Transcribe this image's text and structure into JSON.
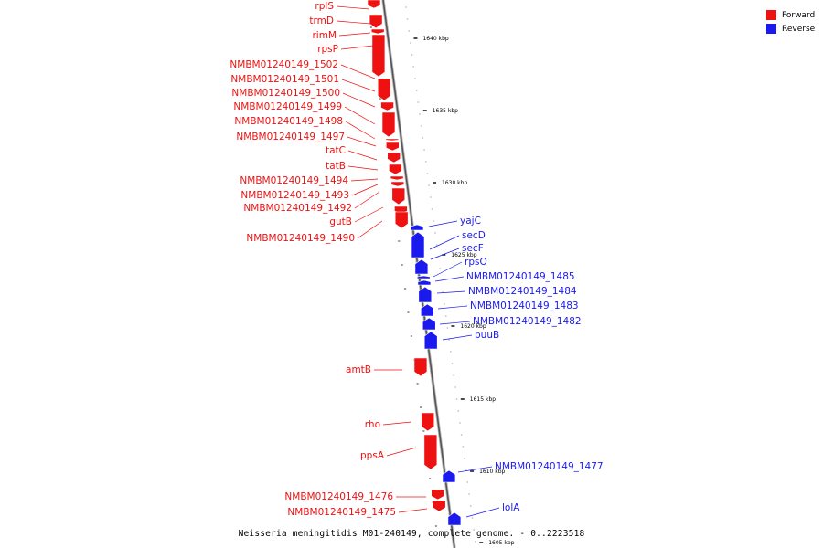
{
  "colors": {
    "forward": "#ee1111",
    "reverse": "#1a1aee",
    "backbone": "#888888"
  },
  "legend": [
    {
      "label": "Forward",
      "color": "#ee1111"
    },
    {
      "label": "Reverse",
      "color": "#1a1aee"
    }
  ],
  "caption": "Neisseria meningitidis M01-240149, complete genome. - 0..2223518",
  "ticks": [
    {
      "label": "1640 kbp",
      "pos_kbp": 1640
    },
    {
      "label": "1635 kbp",
      "pos_kbp": 1635
    },
    {
      "label": "1630 kbp",
      "pos_kbp": 1630
    },
    {
      "label": "1625 kbp",
      "pos_kbp": 1625
    },
    {
      "label": "1620 kbp",
      "pos_kbp": 1620
    },
    {
      "label": "1615 kbp",
      "pos_kbp": 1615
    },
    {
      "label": "1610 kbp",
      "pos_kbp": 1610
    },
    {
      "label": "1605 kbp",
      "pos_kbp": 1605
    }
  ],
  "genes": [
    {
      "name": "rplS",
      "strand": "forward"
    },
    {
      "name": "trmD",
      "strand": "forward"
    },
    {
      "name": "rimM",
      "strand": "forward"
    },
    {
      "name": "rpsP",
      "strand": "forward"
    },
    {
      "name": "NMBM01240149_1502",
      "strand": "forward"
    },
    {
      "name": "NMBM01240149_1501",
      "strand": "forward"
    },
    {
      "name": "NMBM01240149_1500",
      "strand": "forward"
    },
    {
      "name": "NMBM01240149_1499",
      "strand": "forward"
    },
    {
      "name": "NMBM01240149_1498",
      "strand": "forward"
    },
    {
      "name": "NMBM01240149_1497",
      "strand": "forward"
    },
    {
      "name": "tatC",
      "strand": "forward"
    },
    {
      "name": "tatB",
      "strand": "forward"
    },
    {
      "name": "NMBM01240149_1494",
      "strand": "forward"
    },
    {
      "name": "NMBM01240149_1493",
      "strand": "forward"
    },
    {
      "name": "NMBM01240149_1492",
      "strand": "forward"
    },
    {
      "name": "gutB",
      "strand": "forward"
    },
    {
      "name": "NMBM01240149_1490",
      "strand": "forward"
    },
    {
      "name": "yajC",
      "strand": "reverse"
    },
    {
      "name": "secD",
      "strand": "reverse"
    },
    {
      "name": "secF",
      "strand": "reverse"
    },
    {
      "name": "rpsO",
      "strand": "reverse"
    },
    {
      "name": "NMBM01240149_1485",
      "strand": "reverse"
    },
    {
      "name": "NMBM01240149_1484",
      "strand": "reverse"
    },
    {
      "name": "NMBM01240149_1483",
      "strand": "reverse"
    },
    {
      "name": "NMBM01240149_1482",
      "strand": "reverse"
    },
    {
      "name": "puuB",
      "strand": "reverse"
    },
    {
      "name": "amtB",
      "strand": "forward"
    },
    {
      "name": "rho",
      "strand": "forward"
    },
    {
      "name": "ppsA",
      "strand": "forward"
    },
    {
      "name": "NMBM01240149_1477",
      "strand": "reverse"
    },
    {
      "name": "NMBM01240149_1476",
      "strand": "forward"
    },
    {
      "name": "NMBM01240149_1475",
      "strand": "forward"
    },
    {
      "name": "lolA",
      "strand": "reverse"
    }
  ]
}
